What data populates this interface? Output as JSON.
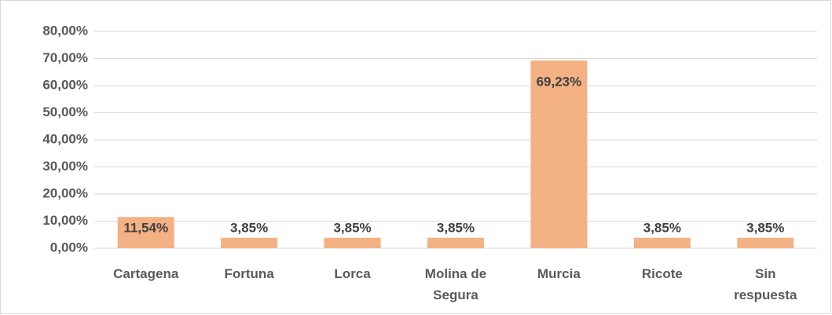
{
  "chart_data": {
    "type": "bar",
    "categories": [
      "Cartagena",
      "Fortuna",
      "Lorca",
      "Molina de Segura",
      "Murcia",
      "Ricote",
      "Sin respuesta"
    ],
    "values": [
      11.54,
      3.85,
      3.85,
      3.85,
      69.23,
      3.85,
      3.85
    ],
    "value_labels": [
      "11,54%",
      "3,85%",
      "3,85%",
      "3,85%",
      "69,23%",
      "3,85%",
      "3,85%"
    ],
    "color": "#f4b183",
    "ylim": [
      0,
      80
    ],
    "yticks": [
      {
        "value": 0,
        "label": "0,00%"
      },
      {
        "value": 10,
        "label": "10,00%"
      },
      {
        "value": 20,
        "label": "20,00%"
      },
      {
        "value": 30,
        "label": "30,00%"
      },
      {
        "value": 40,
        "label": "40,00%"
      },
      {
        "value": 50,
        "label": "50,00%"
      },
      {
        "value": 60,
        "label": "60,00%"
      },
      {
        "value": 70,
        "label": "70,00%"
      },
      {
        "value": 80,
        "label": "80,00%"
      }
    ],
    "grid": true
  }
}
